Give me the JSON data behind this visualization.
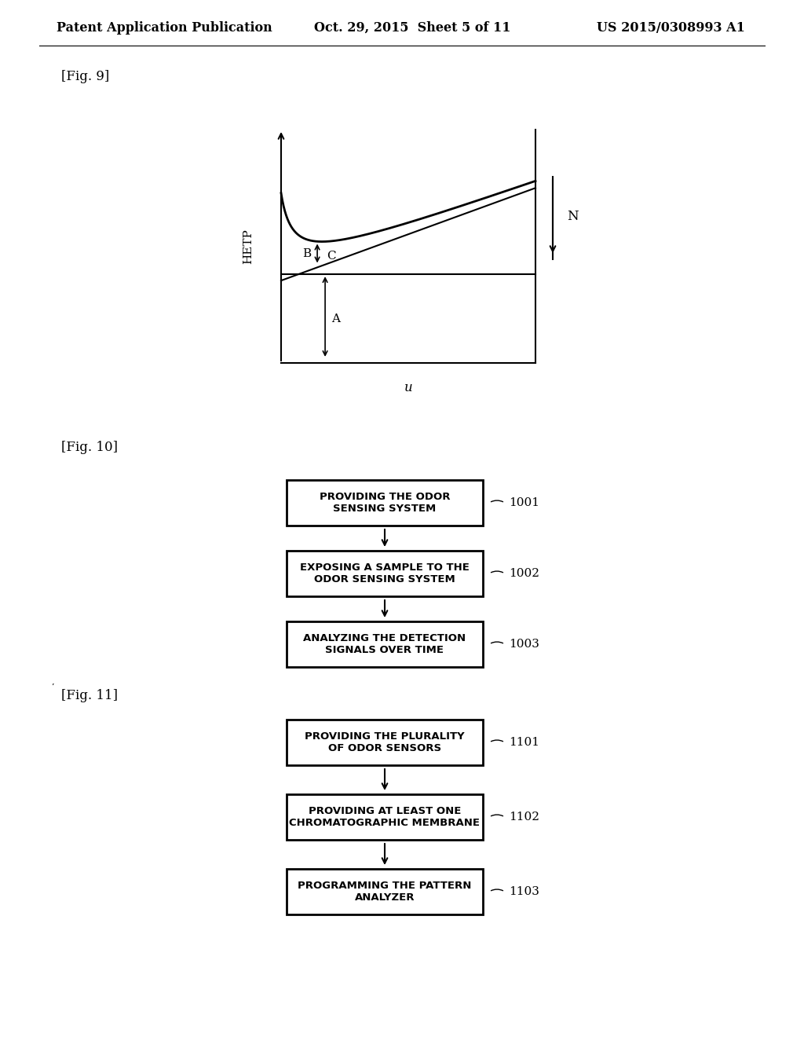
{
  "header_left": "Patent Application Publication",
  "header_mid": "Oct. 29, 2015  Sheet 5 of 11",
  "header_right": "US 2015/0308993 A1",
  "fig9_label": "[Fig. 9]",
  "fig9_ylabel": "HETP",
  "fig9_xlabel": "u",
  "fig9_N_label": "N",
  "fig9_A_label": "A",
  "fig9_B_label": "B",
  "fig9_C_label": "C",
  "fig10_label": "[Fig. 10]",
  "fig10_boxes": [
    {
      "text": "PROVIDING THE ODOR\nSENSING SYSTEM",
      "tag": "1001"
    },
    {
      "text": "EXPOSING A SAMPLE TO THE\nODOR SENSING SYSTEM",
      "tag": "1002"
    },
    {
      "text": "ANALYZING THE DETECTION\nSIGNALS OVER TIME",
      "tag": "1003"
    }
  ],
  "fig11_label": "[Fig. 11]",
  "fig11_boxes": [
    {
      "text": "PROVIDING THE PLURALITY\nOF ODOR SENSORS",
      "tag": "1101"
    },
    {
      "text": "PROVIDING AT LEAST ONE\nCHROMATOGRAPHIC MEMBRANE",
      "tag": "1102"
    },
    {
      "text": "PROGRAMMING THE PATTERN\nANALYZER",
      "tag": "1103"
    }
  ],
  "bg_color": "#ffffff",
  "text_color": "#000000"
}
